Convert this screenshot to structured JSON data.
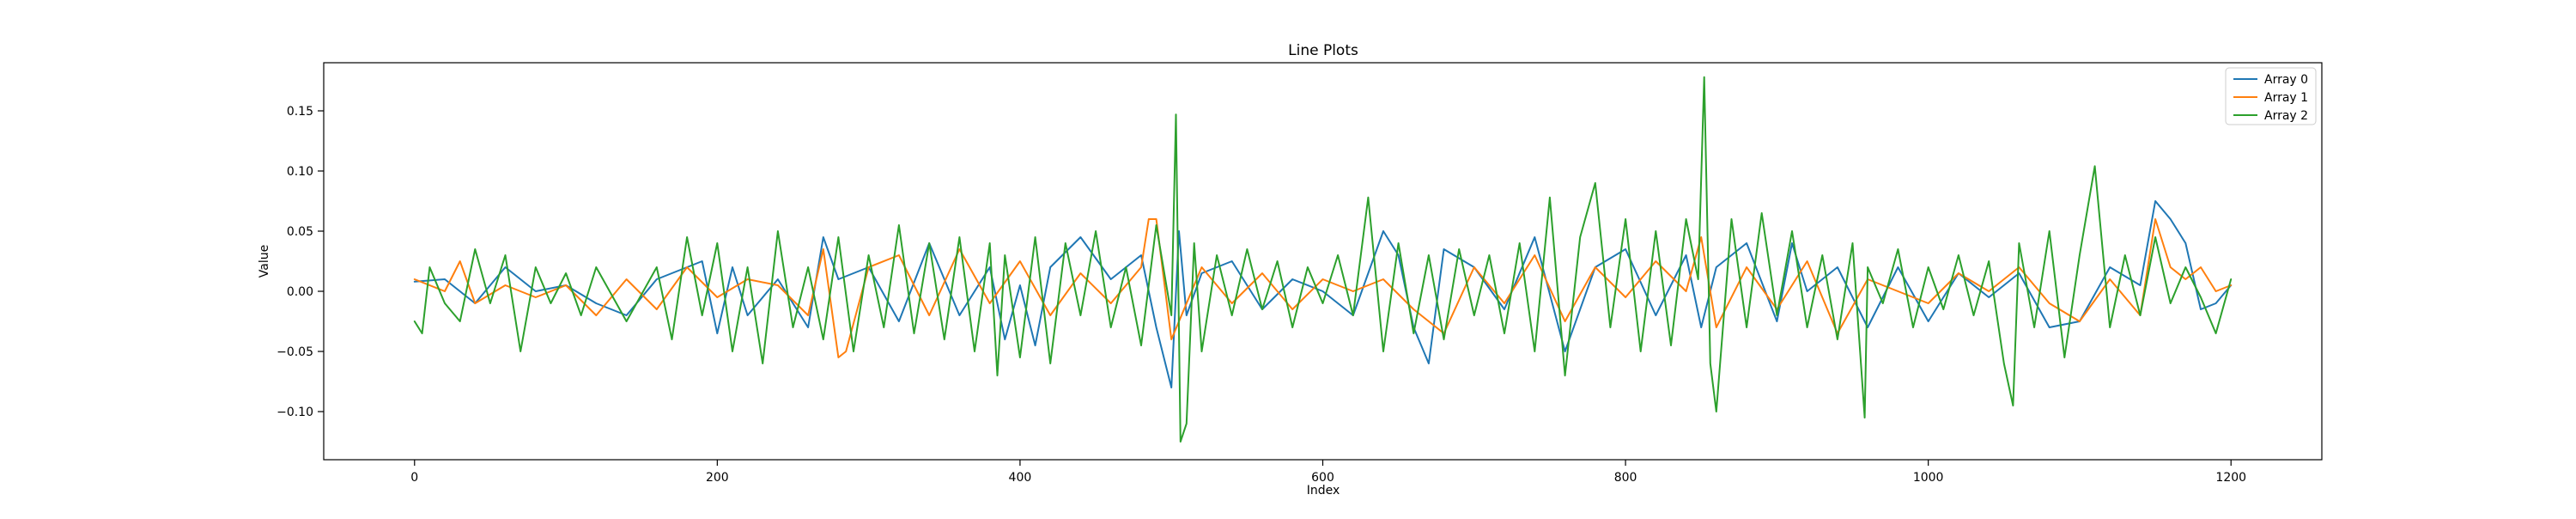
{
  "chart_data": {
    "type": "line",
    "title": "Line Plots",
    "xlabel": "Index",
    "ylabel": "Value",
    "xlim": [
      -60,
      1260
    ],
    "ylim": [
      -0.14,
      0.19
    ],
    "xticks": [
      0,
      200,
      400,
      600,
      800,
      1000,
      1200
    ],
    "yticks": [
      -0.1,
      -0.05,
      0.0,
      0.05,
      0.1,
      0.15
    ],
    "xtick_labels": [
      "0",
      "200",
      "400",
      "600",
      "800",
      "1000",
      "1200"
    ],
    "ytick_labels": [
      "−0.10",
      "−0.05",
      "0.00",
      "0.05",
      "0.10",
      "0.15"
    ],
    "grid": false,
    "legend_position": "top-right",
    "series": [
      {
        "name": "Array 0",
        "color": "#1f77b4",
        "x": [
          0,
          20,
          40,
          60,
          80,
          100,
          120,
          140,
          160,
          180,
          190,
          200,
          210,
          220,
          240,
          260,
          270,
          280,
          300,
          320,
          340,
          360,
          380,
          390,
          400,
          410,
          420,
          440,
          460,
          480,
          490,
          500,
          505,
          510,
          520,
          540,
          560,
          580,
          600,
          620,
          640,
          650,
          660,
          670,
          680,
          700,
          720,
          740,
          760,
          780,
          800,
          820,
          840,
          850,
          860,
          880,
          900,
          910,
          920,
          940,
          960,
          980,
          1000,
          1020,
          1040,
          1060,
          1080,
          1100,
          1120,
          1140,
          1150,
          1160,
          1170,
          1180,
          1190,
          1200
        ],
        "values": [
          0.008,
          0.01,
          -0.01,
          0.02,
          0.0,
          0.005,
          -0.01,
          -0.02,
          0.01,
          0.02,
          0.025,
          -0.035,
          0.02,
          -0.02,
          0.01,
          -0.03,
          0.045,
          0.01,
          0.02,
          -0.025,
          0.04,
          -0.02,
          0.02,
          -0.04,
          0.005,
          -0.045,
          0.02,
          0.045,
          0.01,
          0.03,
          -0.03,
          -0.08,
          0.05,
          -0.02,
          0.015,
          0.025,
          -0.015,
          0.01,
          0.0,
          -0.02,
          0.05,
          0.03,
          -0.03,
          -0.06,
          0.035,
          0.02,
          -0.015,
          0.045,
          -0.05,
          0.02,
          0.035,
          -0.02,
          0.03,
          -0.03,
          0.02,
          0.04,
          -0.025,
          0.04,
          0.0,
          0.02,
          -0.03,
          0.02,
          -0.025,
          0.015,
          -0.005,
          0.015,
          -0.03,
          -0.025,
          0.02,
          0.005,
          0.075,
          0.06,
          0.04,
          -0.015,
          -0.01,
          0.005
        ]
      },
      {
        "name": "Array 1",
        "color": "#ff7f0e",
        "x": [
          0,
          20,
          30,
          40,
          60,
          80,
          100,
          120,
          140,
          160,
          180,
          200,
          220,
          240,
          260,
          270,
          280,
          285,
          300,
          320,
          340,
          360,
          380,
          400,
          420,
          440,
          460,
          480,
          485,
          490,
          500,
          520,
          540,
          560,
          580,
          600,
          620,
          640,
          660,
          680,
          700,
          720,
          740,
          760,
          780,
          800,
          820,
          840,
          850,
          860,
          880,
          900,
          920,
          940,
          960,
          980,
          1000,
          1020,
          1040,
          1060,
          1080,
          1100,
          1120,
          1140,
          1150,
          1160,
          1170,
          1180,
          1190,
          1200
        ],
        "values": [
          0.01,
          0.0,
          0.025,
          -0.01,
          0.005,
          -0.005,
          0.005,
          -0.02,
          0.01,
          -0.015,
          0.02,
          -0.005,
          0.01,
          0.005,
          -0.02,
          0.035,
          -0.055,
          -0.05,
          0.02,
          0.03,
          -0.02,
          0.035,
          -0.01,
          0.025,
          -0.02,
          0.015,
          -0.01,
          0.02,
          0.06,
          0.06,
          -0.04,
          0.02,
          -0.01,
          0.015,
          -0.015,
          0.01,
          0.0,
          0.01,
          -0.015,
          -0.035,
          0.02,
          -0.01,
          0.03,
          -0.025,
          0.02,
          -0.005,
          0.025,
          0.0,
          0.045,
          -0.03,
          0.02,
          -0.015,
          0.025,
          -0.035,
          0.01,
          0.0,
          -0.01,
          0.015,
          0.0,
          0.02,
          -0.01,
          -0.025,
          0.01,
          -0.02,
          0.06,
          0.02,
          0.01,
          0.02,
          0.0,
          0.005
        ]
      },
      {
        "name": "Array 2",
        "color": "#2ca02c",
        "x": [
          0,
          5,
          10,
          20,
          30,
          40,
          50,
          60,
          70,
          80,
          90,
          100,
          110,
          120,
          140,
          160,
          170,
          180,
          190,
          200,
          210,
          220,
          230,
          240,
          250,
          260,
          270,
          280,
          290,
          300,
          310,
          320,
          330,
          340,
          350,
          360,
          370,
          380,
          385,
          390,
          400,
          410,
          420,
          430,
          440,
          450,
          460,
          470,
          480,
          490,
          500,
          503,
          506,
          510,
          515,
          520,
          530,
          540,
          550,
          560,
          570,
          580,
          590,
          600,
          610,
          620,
          630,
          640,
          650,
          660,
          670,
          680,
          690,
          700,
          710,
          720,
          730,
          740,
          750,
          760,
          770,
          780,
          790,
          800,
          810,
          820,
          830,
          840,
          848,
          852,
          856,
          860,
          870,
          880,
          890,
          900,
          910,
          920,
          930,
          940,
          950,
          958,
          960,
          970,
          980,
          990,
          1000,
          1010,
          1020,
          1030,
          1040,
          1050,
          1056,
          1060,
          1070,
          1080,
          1090,
          1100,
          1110,
          1120,
          1130,
          1140,
          1150,
          1160,
          1170,
          1180,
          1190,
          1200
        ],
        "values": [
          -0.025,
          -0.035,
          0.02,
          -0.01,
          -0.025,
          0.035,
          -0.01,
          0.03,
          -0.05,
          0.02,
          -0.01,
          0.015,
          -0.02,
          0.02,
          -0.025,
          0.02,
          -0.04,
          0.045,
          -0.02,
          0.04,
          -0.05,
          0.02,
          -0.06,
          0.05,
          -0.03,
          0.02,
          -0.04,
          0.045,
          -0.05,
          0.03,
          -0.03,
          0.055,
          -0.035,
          0.04,
          -0.04,
          0.045,
          -0.05,
          0.04,
          -0.07,
          0.03,
          -0.055,
          0.045,
          -0.06,
          0.04,
          -0.02,
          0.05,
          -0.03,
          0.02,
          -0.045,
          0.055,
          -0.02,
          0.147,
          -0.125,
          -0.11,
          0.04,
          -0.05,
          0.03,
          -0.02,
          0.035,
          -0.015,
          0.025,
          -0.03,
          0.02,
          -0.01,
          0.03,
          -0.02,
          0.078,
          -0.05,
          0.04,
          -0.035,
          0.03,
          -0.04,
          0.035,
          -0.02,
          0.03,
          -0.035,
          0.04,
          -0.05,
          0.078,
          -0.07,
          0.045,
          0.09,
          -0.03,
          0.06,
          -0.05,
          0.05,
          -0.045,
          0.06,
          0.01,
          0.178,
          -0.06,
          -0.1,
          0.06,
          -0.03,
          0.065,
          -0.02,
          0.05,
          -0.03,
          0.03,
          -0.04,
          0.04,
          -0.105,
          0.02,
          -0.01,
          0.035,
          -0.03,
          0.02,
          -0.015,
          0.03,
          -0.02,
          0.025,
          -0.06,
          -0.095,
          0.04,
          -0.03,
          0.05,
          -0.055,
          0.03,
          0.104,
          -0.03,
          0.03,
          -0.02,
          0.045,
          -0.01,
          0.02,
          -0.005,
          -0.035,
          0.01
        ]
      }
    ]
  }
}
